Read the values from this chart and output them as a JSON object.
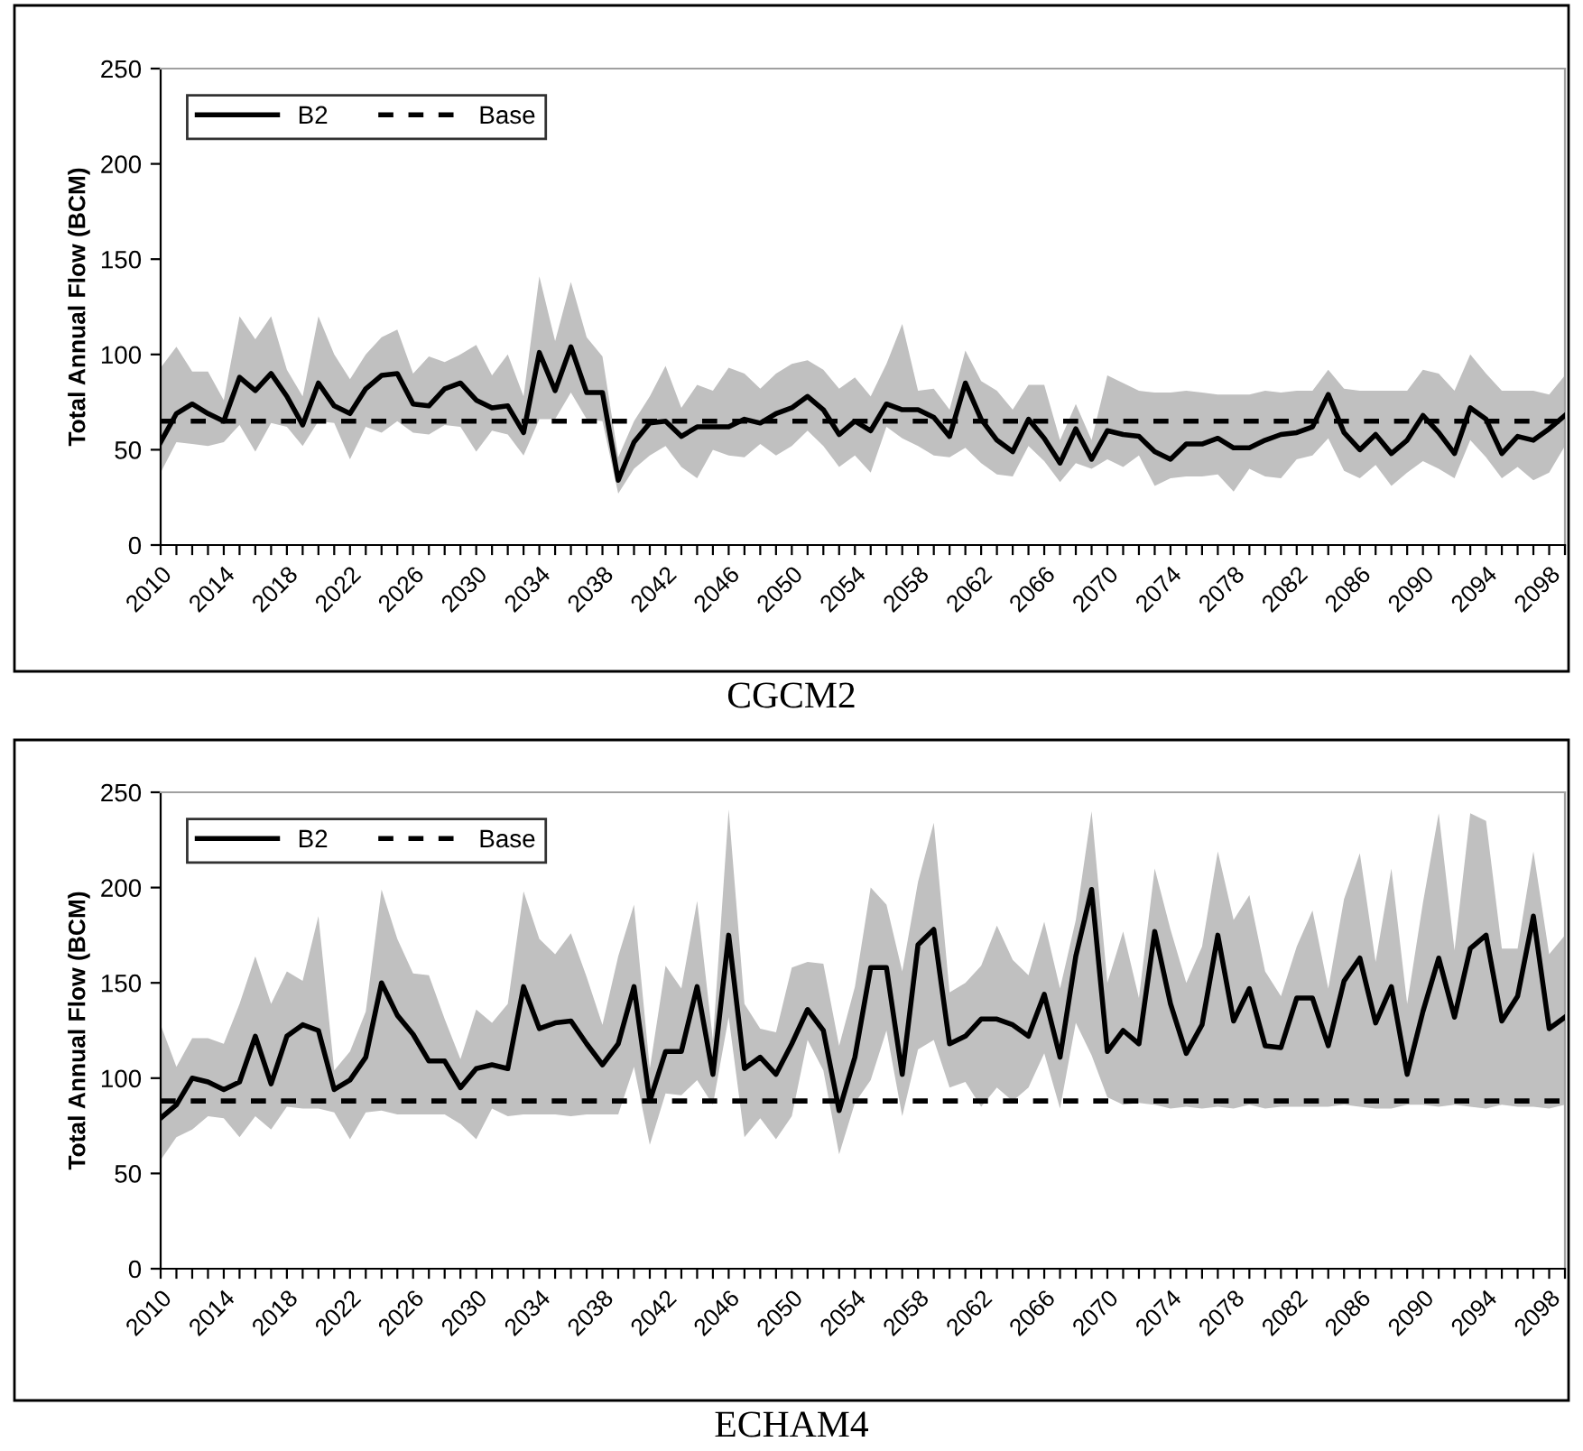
{
  "chart_data": [
    {
      "type": "line",
      "title": "CGCM2",
      "ylabel": "Total Annual Flow (BCM)",
      "categories": [
        "2010",
        null,
        null,
        null,
        "2014",
        null,
        null,
        null,
        "2018",
        null,
        null,
        null,
        "2022",
        null,
        null,
        null,
        "2026",
        null,
        null,
        null,
        "2030",
        null,
        null,
        null,
        "2034",
        null,
        null,
        null,
        "2038",
        null,
        null,
        null,
        "2042",
        null,
        null,
        null,
        "2046",
        null,
        null,
        null,
        "2050",
        null,
        null,
        null,
        "2054",
        null,
        null,
        null,
        "2058",
        null,
        null,
        null,
        "2062",
        null,
        null,
        null,
        "2066",
        null,
        null,
        null,
        "2070",
        null,
        null,
        null,
        "2074",
        null,
        null,
        null,
        "2078",
        null,
        null,
        null,
        "2082",
        null,
        null,
        null,
        "2086",
        null,
        null,
        null,
        "2090",
        null,
        null,
        null,
        "2094",
        null,
        null,
        null,
        "2098",
        null
      ],
      "series": [
        {
          "name": "B2",
          "color": "#000000",
          "values": [
            54,
            69,
            74,
            69,
            65,
            88,
            81,
            90,
            78,
            63,
            85,
            73,
            69,
            82,
            89,
            90,
            74,
            73,
            82,
            85,
            76,
            72,
            73,
            59,
            101,
            81,
            104,
            80,
            80,
            34,
            54,
            64,
            65,
            57,
            62,
            62,
            62,
            66,
            64,
            69,
            72,
            78,
            71,
            58,
            65,
            60,
            74,
            71,
            71,
            67,
            57,
            85,
            66,
            55,
            49,
            66,
            56,
            43,
            61,
            45,
            60,
            58,
            57,
            49,
            45,
            53,
            53,
            56,
            51,
            51,
            55,
            58,
            59,
            62,
            79,
            59,
            50,
            58,
            48,
            55,
            68,
            59,
            48,
            72,
            66,
            48,
            57,
            55,
            61,
            68
          ],
          "lower": [
            38,
            54,
            53,
            52,
            54,
            63,
            49,
            64,
            62,
            52,
            65,
            64,
            45,
            62,
            59,
            65,
            59,
            58,
            63,
            62,
            49,
            60,
            58,
            47,
            66,
            66,
            80,
            66,
            65,
            27,
            40,
            47,
            52,
            41,
            35,
            50,
            47,
            46,
            53,
            47,
            52,
            60,
            52,
            41,
            47,
            38,
            62,
            56,
            52,
            47,
            46,
            51,
            43,
            37,
            36,
            52,
            44,
            33,
            43,
            40,
            45,
            41,
            47,
            31,
            35,
            36,
            36,
            37,
            28,
            40,
            36,
            35,
            45,
            47,
            56,
            39,
            35,
            42,
            31,
            38,
            44,
            40,
            35,
            55,
            46,
            35,
            41,
            34,
            38,
            52
          ],
          "upper": [
            93,
            104,
            91,
            91,
            76,
            120,
            108,
            120,
            92,
            78,
            120,
            100,
            87,
            100,
            109,
            113,
            90,
            99,
            96,
            100,
            105,
            89,
            100,
            78,
            141,
            107,
            138,
            109,
            99,
            46,
            65,
            78,
            94,
            72,
            84,
            81,
            93,
            90,
            82,
            90,
            95,
            97,
            92,
            82,
            88,
            78,
            95,
            116,
            81,
            82,
            71,
            102,
            86,
            81,
            71,
            84,
            84,
            55,
            74,
            55,
            89,
            85,
            81,
            80,
            80,
            81,
            80,
            79,
            79,
            79,
            81,
            80,
            81,
            81,
            92,
            82,
            81,
            81,
            81,
            81,
            92,
            90,
            81,
            100,
            90,
            81,
            81,
            81,
            79,
            89
          ]
        }
      ],
      "ylim": [
        0,
        250
      ],
      "yticks": [
        0,
        50,
        100,
        150,
        200,
        250
      ],
      "ref_lines": [
        {
          "axis": "y",
          "value": 65,
          "label": "Base",
          "color": "#000000",
          "line_style": "dashed"
        }
      ],
      "legend": "top left",
      "grid": false,
      "marker": "none",
      "line_style": "solid"
    },
    {
      "type": "line",
      "title": "ECHAM4",
      "ylabel": "Total Annual Flow (BCM)",
      "categories": [
        "2010",
        null,
        null,
        null,
        "2014",
        null,
        null,
        null,
        "2018",
        null,
        null,
        null,
        "2022",
        null,
        null,
        null,
        "2026",
        null,
        null,
        null,
        "2030",
        null,
        null,
        null,
        "2034",
        null,
        null,
        null,
        "2038",
        null,
        null,
        null,
        "2042",
        null,
        null,
        null,
        "2046",
        null,
        null,
        null,
        "2050",
        null,
        null,
        null,
        "2054",
        null,
        null,
        null,
        "2058",
        null,
        null,
        null,
        "2062",
        null,
        null,
        null,
        "2066",
        null,
        null,
        null,
        "2070",
        null,
        null,
        null,
        "2074",
        null,
        null,
        null,
        "2078",
        null,
        null,
        null,
        "2082",
        null,
        null,
        null,
        "2086",
        null,
        null,
        null,
        "2090",
        null,
        null,
        null,
        "2094",
        null,
        null,
        null,
        "2098",
        null
      ],
      "series": [
        {
          "name": "B2",
          "color": "#000000",
          "values": [
            79,
            86,
            100,
            98,
            94,
            98,
            122,
            97,
            122,
            128,
            125,
            94,
            99,
            111,
            150,
            133,
            123,
            109,
            109,
            95,
            105,
            107,
            105,
            148,
            126,
            129,
            130,
            118,
            107,
            118,
            148,
            88,
            114,
            114,
            148,
            102,
            175,
            105,
            111,
            102,
            118,
            136,
            125,
            83,
            111,
            158,
            158,
            102,
            170,
            178,
            118,
            122,
            131,
            131,
            128,
            122,
            144,
            111,
            164,
            199,
            114,
            125,
            118,
            177,
            139,
            113,
            128,
            175,
            130,
            147,
            117,
            116,
            142,
            142,
            117,
            151,
            163,
            129,
            148,
            102,
            135,
            163,
            132,
            168,
            175,
            130,
            143,
            185,
            126,
            132
          ],
          "lower": [
            57,
            69,
            73,
            80,
            79,
            69,
            80,
            73,
            85,
            84,
            84,
            82,
            68,
            82,
            83,
            81,
            81,
            81,
            81,
            76,
            68,
            84,
            80,
            81,
            81,
            81,
            80,
            81,
            81,
            81,
            106,
            65,
            92,
            91,
            99,
            86,
            132,
            69,
            79,
            68,
            80,
            120,
            104,
            60,
            87,
            99,
            125,
            80,
            115,
            120,
            95,
            98,
            85,
            95,
            88,
            95,
            113,
            84,
            129,
            112,
            90,
            86,
            87,
            86,
            84,
            85,
            84,
            85,
            84,
            86,
            84,
            85,
            85,
            85,
            85,
            86,
            85,
            84,
            84,
            86,
            86,
            85,
            86,
            85,
            84,
            86,
            85,
            85,
            84,
            86
          ],
          "upper": [
            128,
            106,
            121,
            121,
            118,
            139,
            164,
            139,
            156,
            151,
            185,
            104,
            114,
            135,
            199,
            173,
            155,
            154,
            131,
            110,
            136,
            129,
            139,
            198,
            173,
            165,
            176,
            153,
            128,
            164,
            191,
            105,
            159,
            147,
            193,
            120,
            241,
            139,
            126,
            124,
            158,
            161,
            160,
            117,
            148,
            200,
            191,
            156,
            203,
            234,
            145,
            150,
            159,
            180,
            162,
            154,
            182,
            147,
            183,
            240,
            150,
            177,
            142,
            210,
            178,
            150,
            169,
            219,
            183,
            196,
            156,
            143,
            169,
            188,
            147,
            194,
            218,
            161,
            210,
            139,
            192,
            239,
            167,
            239,
            235,
            168,
            168,
            219,
            165,
            175
          ]
        }
      ],
      "ylim": [
        0,
        250
      ],
      "yticks": [
        0,
        50,
        100,
        150,
        200,
        250
      ],
      "ref_lines": [
        {
          "axis": "y",
          "value": 88,
          "label": "Base",
          "color": "#000000",
          "line_style": "dashed"
        }
      ],
      "legend": "top left",
      "grid": false,
      "marker": "none",
      "line_style": "solid"
    }
  ]
}
